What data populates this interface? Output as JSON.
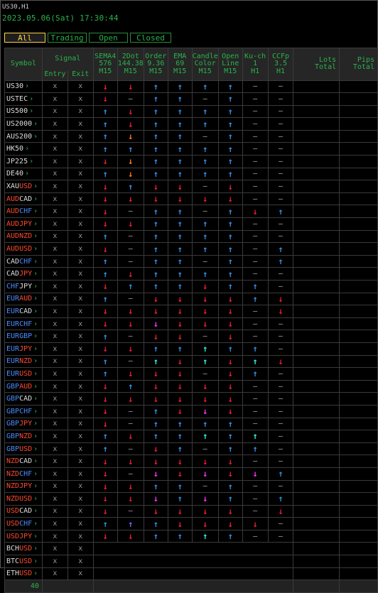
{
  "header": {
    "title": "US30,H1",
    "datetime": "2023.05.06(Sat) 17:30:44"
  },
  "tabs": [
    {
      "label": "All",
      "active": true
    },
    {
      "label": "Trading",
      "active": false
    },
    {
      "label": "Open",
      "active": false
    },
    {
      "label": "Closed",
      "active": false
    }
  ],
  "columns": {
    "symbol": "Symbol",
    "signal": "Signal",
    "entry": "Entry",
    "exit": "Exit",
    "sema": [
      "SEMA4",
      "576",
      "M15"
    ],
    "dot": [
      "2Dot",
      "144.38",
      "M15"
    ],
    "order": [
      "Order",
      "9.36",
      "M15"
    ],
    "ema": [
      "EMA",
      "69",
      "M15"
    ],
    "candle": [
      "Candle",
      "Color",
      "M15"
    ],
    "openline": [
      "Open",
      "Line",
      "M15"
    ],
    "kuch": [
      "Ku-ch",
      "1",
      "H1"
    ],
    "ccfp": [
      "CCFp",
      "3.5",
      "H1"
    ],
    "lots": [
      "Lots",
      "Total"
    ],
    "pips": [
      "Pips",
      "Total"
    ]
  },
  "colors": {
    "up": "#3b8ee0",
    "down": "#ee1c3c",
    "orange": "#ff7a1a",
    "magenta": "#ff33ff",
    "cyan": "#2ff2e8",
    "blue_violet": "#6b6bff",
    "currency_red": "#ff4a2e",
    "currency_blue": "#4a8dff",
    "currency_white": "#dddddd",
    "green": "#2bb24c",
    "yellow": "#ffd24a"
  },
  "row_height_hint": "~16.6px",
  "rows": [
    {
      "p": [
        [
          "US30",
          "w"
        ]
      ],
      "e": "x",
      "x": "x",
      "s": [
        "d",
        "D",
        "u",
        "u",
        "u",
        "u",
        "-",
        "-"
      ],
      "g": true
    },
    {
      "p": [
        [
          "USTEC",
          "w"
        ]
      ],
      "e": "x",
      "x": "x",
      "s": [
        "D",
        "-",
        "u",
        "u",
        "-",
        "u",
        "-",
        "-"
      ]
    },
    {
      "p": [
        [
          "US500",
          "w"
        ]
      ],
      "e": "x",
      "x": "x",
      "s": [
        "u",
        "D",
        "u",
        "u",
        "u",
        "u",
        "-",
        "-"
      ],
      "g": true
    },
    {
      "p": [
        [
          "US2000",
          "w"
        ]
      ],
      "e": "x",
      "x": "x",
      "s": [
        "u",
        "D",
        "u",
        "u",
        "u",
        "u",
        "-",
        "-"
      ]
    },
    {
      "p": [
        [
          "AUS200",
          "w"
        ]
      ],
      "e": "x",
      "x": "x",
      "s": [
        "u",
        "O",
        "u",
        "u",
        "-",
        "u",
        "-",
        "-"
      ],
      "g": true
    },
    {
      "p": [
        [
          "HK50",
          "w"
        ]
      ],
      "e": "x",
      "x": "x",
      "s": [
        "u",
        "u",
        "u",
        "u",
        "u",
        "u",
        "-",
        "-"
      ]
    },
    {
      "p": [
        [
          "JP225",
          "w"
        ]
      ],
      "e": "x",
      "x": "x",
      "s": [
        "D",
        "O",
        "u",
        "u",
        "u",
        "u",
        "-",
        "-"
      ],
      "g": true
    },
    {
      "p": [
        [
          "DE40",
          "w"
        ]
      ],
      "e": "x",
      "x": "x",
      "s": [
        "u",
        "O",
        "u",
        "u",
        "u",
        "u",
        "-",
        "-"
      ]
    },
    {
      "p": [
        [
          "XAU",
          "w"
        ],
        [
          "USD",
          "r"
        ]
      ],
      "e": "x",
      "x": "x",
      "s": [
        "D",
        "u",
        "D",
        "D",
        "-",
        "D",
        "-",
        "-"
      ],
      "g": true
    },
    {
      "p": [
        [
          "AUD",
          "r"
        ],
        [
          "CAD",
          "w"
        ]
      ],
      "e": "x",
      "x": "x",
      "s": [
        "D",
        "D",
        "D",
        "D",
        "D",
        "D",
        "-",
        "-"
      ]
    },
    {
      "p": [
        [
          "AUD",
          "r"
        ],
        [
          "CHF",
          "b"
        ]
      ],
      "e": "x",
      "x": "x",
      "s": [
        "D",
        "-",
        "u",
        "u",
        "-",
        "u",
        "D",
        "u"
      ],
      "g": true
    },
    {
      "p": [
        [
          "AUD",
          "r"
        ],
        [
          "JPY",
          "r"
        ]
      ],
      "e": "x",
      "x": "x",
      "s": [
        "D",
        "D",
        "u",
        "u",
        "u",
        "u",
        "-",
        "-"
      ]
    },
    {
      "p": [
        [
          "AUD",
          "r"
        ],
        [
          "NZD",
          "r"
        ]
      ],
      "e": "x",
      "x": "x",
      "s": [
        "u",
        "-",
        "u",
        "u",
        "u",
        "u",
        "-",
        "-"
      ],
      "g": true
    },
    {
      "p": [
        [
          "AUD",
          "r"
        ],
        [
          "USD",
          "r"
        ]
      ],
      "e": "x",
      "x": "x",
      "s": [
        "D",
        "-",
        "u",
        "u",
        "u",
        "u",
        "-",
        "u"
      ]
    },
    {
      "p": [
        [
          "CAD",
          "w"
        ],
        [
          "CHF",
          "b"
        ]
      ],
      "e": "x",
      "x": "x",
      "s": [
        "u",
        "-",
        "u",
        "u",
        "-",
        "u",
        "-",
        "u"
      ],
      "g": true
    },
    {
      "p": [
        [
          "CAD",
          "w"
        ],
        [
          "JPY",
          "r"
        ]
      ],
      "e": "x",
      "x": "x",
      "s": [
        "u",
        "D",
        "u",
        "u",
        "u",
        "u",
        "-",
        "-"
      ]
    },
    {
      "p": [
        [
          "CHF",
          "b"
        ],
        [
          "JPY",
          "w"
        ]
      ],
      "e": "x",
      "x": "x",
      "s": [
        "D",
        "u",
        "u",
        "u",
        "D",
        "u",
        "u",
        "-"
      ],
      "g": true
    },
    {
      "p": [
        [
          "EUR",
          "b"
        ],
        [
          "AUD",
          "r"
        ]
      ],
      "e": "x",
      "x": "x",
      "s": [
        "u",
        "-",
        "D",
        "D",
        "D",
        "D",
        "u",
        "D"
      ]
    },
    {
      "p": [
        [
          "EUR",
          "b"
        ],
        [
          "CAD",
          "w"
        ]
      ],
      "e": "x",
      "x": "x",
      "s": [
        "D",
        "D",
        "D",
        "D",
        "D",
        "D",
        "-",
        "D"
      ],
      "g": true
    },
    {
      "p": [
        [
          "EUR",
          "b"
        ],
        [
          "CHF",
          "b"
        ]
      ],
      "e": "x",
      "x": "x",
      "s": [
        "D",
        "D",
        "M",
        "D",
        "D",
        "D",
        "-",
        "-"
      ]
    },
    {
      "p": [
        [
          "EUR",
          "b"
        ],
        [
          "GBP",
          "b"
        ]
      ],
      "e": "x",
      "x": "x",
      "s": [
        "u",
        "-",
        "D",
        "D",
        "-",
        "D",
        "-",
        "-"
      ],
      "g": true
    },
    {
      "p": [
        [
          "EUR",
          "b"
        ],
        [
          "JPY",
          "r"
        ]
      ],
      "e": "x",
      "x": "x",
      "s": [
        "D",
        "D",
        "u",
        "u",
        "C",
        "u",
        "u",
        "-"
      ]
    },
    {
      "p": [
        [
          "EUR",
          "b"
        ],
        [
          "NZD",
          "r"
        ]
      ],
      "e": "x",
      "x": "x",
      "s": [
        "u",
        "-",
        "C",
        "D",
        "C",
        "D",
        "C",
        "D"
      ],
      "g": true
    },
    {
      "p": [
        [
          "EUR",
          "b"
        ],
        [
          "USD",
          "r"
        ]
      ],
      "e": "x",
      "x": "x",
      "s": [
        "u",
        "D",
        "D",
        "D",
        "-",
        "D",
        "u",
        "-"
      ]
    },
    {
      "p": [
        [
          "GBP",
          "b"
        ],
        [
          "AUD",
          "r"
        ]
      ],
      "e": "x",
      "x": "x",
      "s": [
        "D",
        "u",
        "D",
        "D",
        "D",
        "D",
        "-",
        "-"
      ],
      "g": true
    },
    {
      "p": [
        [
          "GBP",
          "b"
        ],
        [
          "CAD",
          "w"
        ]
      ],
      "e": "x",
      "x": "x",
      "s": [
        "D",
        "D",
        "D",
        "D",
        "D",
        "D",
        "-",
        "-"
      ]
    },
    {
      "p": [
        [
          "GBP",
          "b"
        ],
        [
          "CHF",
          "b"
        ]
      ],
      "e": "x",
      "x": "x",
      "s": [
        "D",
        "-",
        "u",
        "D",
        "M",
        "D",
        "-",
        "-"
      ],
      "g": true
    },
    {
      "p": [
        [
          "GBP",
          "b"
        ],
        [
          "JPY",
          "r"
        ]
      ],
      "e": "x",
      "x": "x",
      "s": [
        "D",
        "-",
        "u",
        "u",
        "u",
        "u",
        "-",
        "-"
      ]
    },
    {
      "p": [
        [
          "GBP",
          "b"
        ],
        [
          "NZD",
          "r"
        ]
      ],
      "e": "x",
      "x": "x",
      "s": [
        "u",
        "D",
        "u",
        "u",
        "C",
        "u",
        "C",
        "-"
      ],
      "g": true
    },
    {
      "p": [
        [
          "GBP",
          "b"
        ],
        [
          "USD",
          "r"
        ]
      ],
      "e": "x",
      "x": "x",
      "s": [
        "u",
        "-",
        "D",
        "u",
        "-",
        "u",
        "u",
        "-"
      ]
    },
    {
      "p": [
        [
          "NZD",
          "r"
        ],
        [
          "CAD",
          "w"
        ]
      ],
      "e": "x",
      "x": "x",
      "s": [
        "D",
        "D",
        "D",
        "D",
        "D",
        "D",
        "-",
        "-"
      ],
      "g": true
    },
    {
      "p": [
        [
          "NZD",
          "r"
        ],
        [
          "CHF",
          "b"
        ]
      ],
      "e": "x",
      "x": "x",
      "s": [
        "D",
        "-",
        "M",
        "D",
        "M",
        "D",
        "M",
        "u"
      ]
    },
    {
      "p": [
        [
          "NZD",
          "r"
        ],
        [
          "JPY",
          "r"
        ]
      ],
      "e": "x",
      "x": "x",
      "s": [
        "D",
        "D",
        "u",
        "u",
        "-",
        "u",
        "-",
        "-"
      ],
      "g": true
    },
    {
      "p": [
        [
          "NZD",
          "r"
        ],
        [
          "USD",
          "r"
        ]
      ],
      "e": "x",
      "x": "x",
      "s": [
        "D",
        "D",
        "M",
        "u",
        "M",
        "u",
        "-",
        "u"
      ]
    },
    {
      "p": [
        [
          "USD",
          "r"
        ],
        [
          "CAD",
          "w"
        ]
      ],
      "e": "x",
      "x": "x",
      "s": [
        "D",
        "-",
        "D",
        "D",
        "D",
        "D",
        "-",
        "D"
      ],
      "g": true
    },
    {
      "p": [
        [
          "USD",
          "r"
        ],
        [
          "CHF",
          "b"
        ]
      ],
      "e": "x",
      "x": "x",
      "s": [
        "u",
        "V",
        "u",
        "D",
        "D",
        "D",
        "D",
        "-"
      ]
    },
    {
      "p": [
        [
          "USD",
          "r"
        ],
        [
          "JPY",
          "r"
        ]
      ],
      "e": "x",
      "x": "x",
      "s": [
        "D",
        "D",
        "u",
        "u",
        "C",
        "u",
        "-",
        "-"
      ],
      "g": true
    },
    {
      "p": [
        [
          "BCH",
          "w"
        ],
        [
          "USD",
          "r"
        ]
      ],
      "e": "x",
      "x": "x",
      "s": null
    },
    {
      "p": [
        [
          "BTC",
          "w"
        ],
        [
          "USD",
          "r"
        ]
      ],
      "e": "x",
      "x": "x",
      "s": null,
      "g": true
    },
    {
      "p": [
        [
          "ETH",
          "w"
        ],
        [
          "USD",
          "r"
        ]
      ],
      "e": "x",
      "x": "x",
      "s": null
    }
  ],
  "footer": {
    "count": "40"
  }
}
